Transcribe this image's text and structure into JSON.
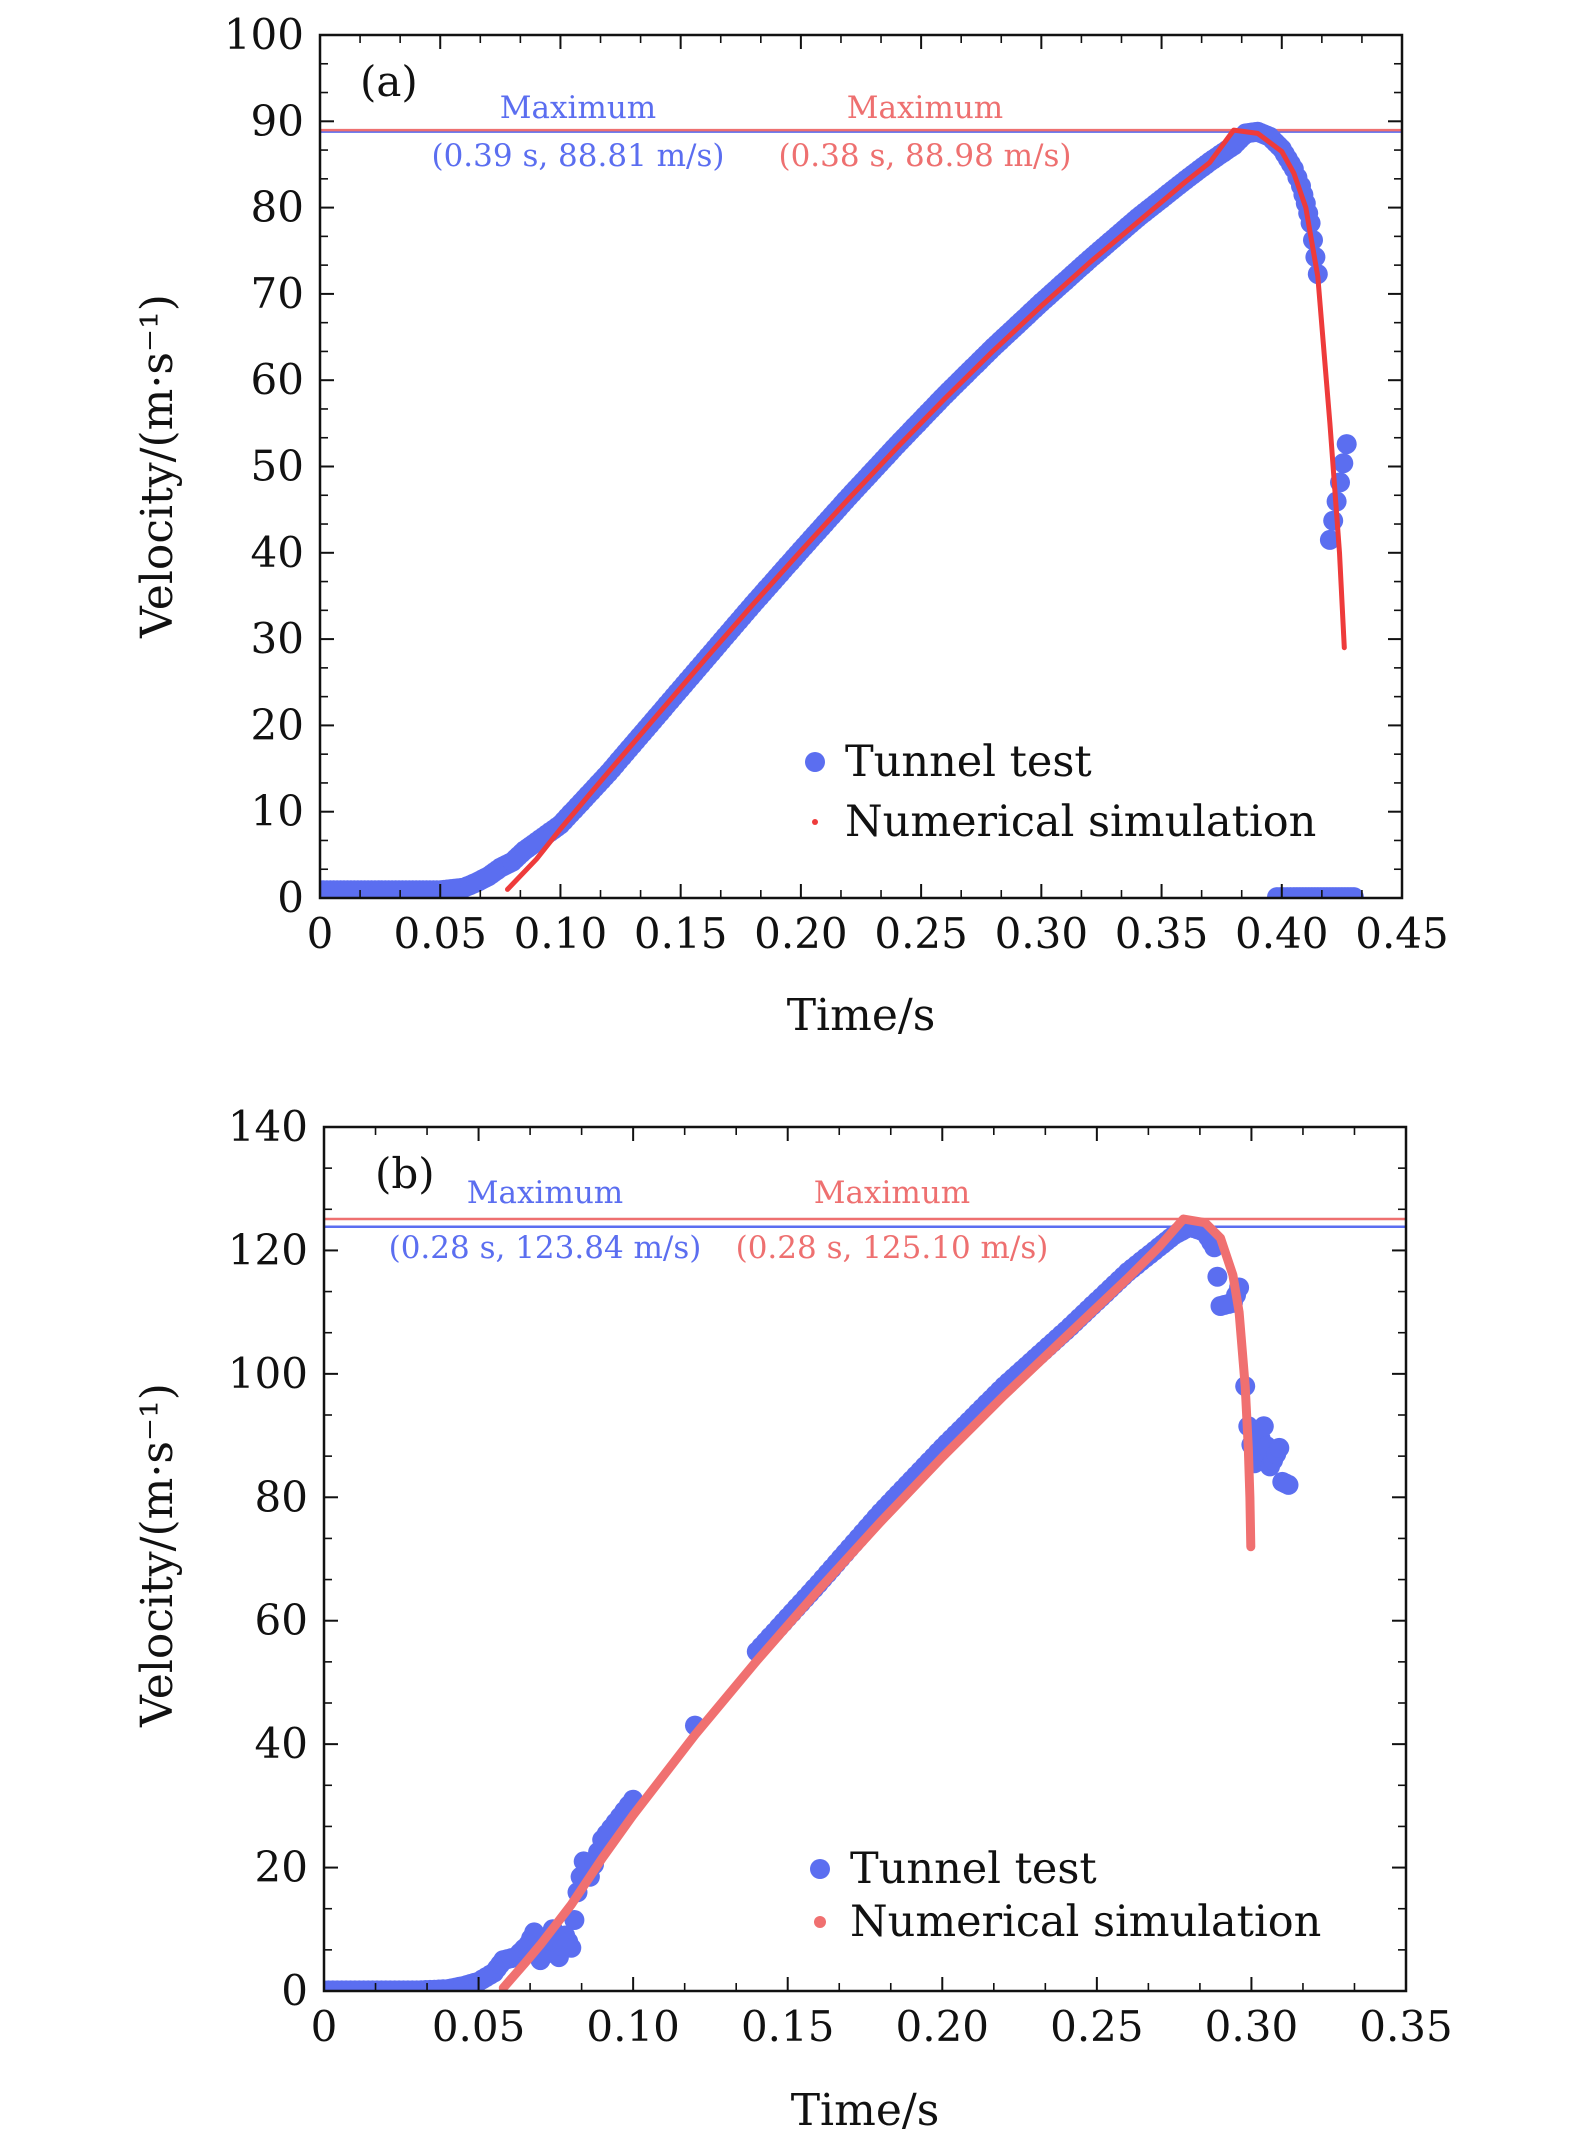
{
  "chart_data": [
    {
      "type": "scatter",
      "panel_label": "(a)",
      "xlabel": "Time/s",
      "ylabel": "Velocity/(m·s⁻¹)",
      "xlim": [
        0,
        0.45
      ],
      "ylim": [
        0,
        100
      ],
      "x_ticks": [
        0,
        0.05,
        0.1,
        0.15,
        0.2,
        0.25,
        0.3,
        0.35,
        0.4,
        0.45
      ],
      "x_tick_labels": [
        "0",
        "0.05",
        "0.10",
        "0.15",
        "0.20",
        "0.25",
        "0.30",
        "0.35",
        "0.40",
        "0.45"
      ],
      "y_ticks": [
        0,
        10,
        20,
        30,
        40,
        50,
        60,
        70,
        80,
        90,
        100
      ],
      "y_tick_labels": [
        "0",
        "10",
        "20",
        "30",
        "40",
        "50",
        "60",
        "70",
        "80",
        "90",
        "100"
      ],
      "legend_position": "bottom-right",
      "series": [
        {
          "name": "Tunnel test",
          "kind": "scatter",
          "color": "#5b6ef0",
          "points": [
            [
              0.0,
              0.9
            ],
            [
              0.01,
              0.9
            ],
            [
              0.02,
              0.9
            ],
            [
              0.03,
              0.9
            ],
            [
              0.04,
              0.9
            ],
            [
              0.05,
              0.9
            ],
            [
              0.06,
              1.2
            ],
            [
              0.065,
              1.8
            ],
            [
              0.07,
              2.5
            ],
            [
              0.075,
              3.5
            ],
            [
              0.08,
              4.2
            ],
            [
              0.085,
              5.5
            ],
            [
              0.09,
              6.5
            ],
            [
              0.1,
              8.5
            ],
            [
              0.12,
              14.5
            ],
            [
              0.14,
              21.0
            ],
            [
              0.16,
              27.5
            ],
            [
              0.18,
              34.0
            ],
            [
              0.2,
              40.3
            ],
            [
              0.22,
              46.5
            ],
            [
              0.24,
              52.5
            ],
            [
              0.26,
              58.3
            ],
            [
              0.28,
              63.8
            ],
            [
              0.3,
              69.0
            ],
            [
              0.32,
              74.0
            ],
            [
              0.34,
              78.8
            ],
            [
              0.36,
              83.2
            ],
            [
              0.37,
              85.3
            ],
            [
              0.38,
              87.2
            ],
            [
              0.385,
              88.6
            ],
            [
              0.39,
              88.8
            ],
            [
              0.395,
              88.2
            ],
            [
              0.4,
              86.8
            ],
            [
              0.405,
              84.5
            ],
            [
              0.408,
              82.5
            ],
            [
              0.41,
              80.5
            ],
            [
              0.412,
              78.2
            ],
            [
              0.415,
              72.3
            ],
            [
              0.42,
              41.5
            ],
            [
              0.427,
              52.6
            ],
            [
              0.398,
              0.1
            ],
            [
              0.405,
              0.1
            ],
            [
              0.41,
              0.1
            ],
            [
              0.415,
              0.1
            ],
            [
              0.42,
              0.1
            ],
            [
              0.425,
              0.1
            ],
            [
              0.43,
              0.1
            ]
          ]
        },
        {
          "name": "Numerical simulation",
          "kind": "line",
          "color": "#ee3b3b",
          "points": [
            [
              0.078,
              1.0
            ],
            [
              0.09,
              4.5
            ],
            [
              0.1,
              8.0
            ],
            [
              0.12,
              14.6
            ],
            [
              0.14,
              21.1
            ],
            [
              0.16,
              27.6
            ],
            [
              0.18,
              34.0
            ],
            [
              0.2,
              40.2
            ],
            [
              0.22,
              46.3
            ],
            [
              0.24,
              52.2
            ],
            [
              0.26,
              57.9
            ],
            [
              0.28,
              63.4
            ],
            [
              0.3,
              68.6
            ],
            [
              0.32,
              73.6
            ],
            [
              0.34,
              78.3
            ],
            [
              0.36,
              83.0
            ],
            [
              0.37,
              85.2
            ],
            [
              0.38,
              88.98
            ],
            [
              0.39,
              88.6
            ],
            [
              0.4,
              86.5
            ],
            [
              0.405,
              84.0
            ],
            [
              0.41,
              80.0
            ],
            [
              0.415,
              72.0
            ],
            [
              0.42,
              55.0
            ],
            [
              0.424,
              40.0
            ],
            [
              0.426,
              29.0
            ]
          ]
        }
      ],
      "reference_lines": [
        {
          "y": 88.81,
          "color": "#5b6ef0"
        },
        {
          "y": 88.98,
          "color": "#ee7070"
        }
      ],
      "annotations": [
        {
          "title": "Maximum",
          "text": "(0.39 s, 88.81 m/s)",
          "color": "#5b6ef0"
        },
        {
          "title": "Maximum",
          "text": "(0.38 s, 88.98 m/s)",
          "color": "#ee7070"
        }
      ]
    },
    {
      "type": "scatter",
      "panel_label": "(b)",
      "xlabel": "Time/s",
      "ylabel": "Velocity/(m·s⁻¹)",
      "xlim": [
        0,
        0.35
      ],
      "ylim": [
        0,
        140
      ],
      "x_ticks": [
        0,
        0.05,
        0.1,
        0.15,
        0.2,
        0.25,
        0.3,
        0.35
      ],
      "x_tick_labels": [
        "0",
        "0.05",
        "0.10",
        "0.15",
        "0.20",
        "0.25",
        "0.30",
        "0.35"
      ],
      "y_ticks": [
        0,
        20,
        40,
        60,
        80,
        100,
        120,
        140
      ],
      "y_tick_labels": [
        "0",
        "20",
        "40",
        "60",
        "80",
        "100",
        "120",
        "140"
      ],
      "legend_position": "bottom-right",
      "series": [
        {
          "name": "Tunnel test",
          "kind": "scatter",
          "color": "#5b6ef0",
          "points": [
            [
              0.0,
              0.1
            ],
            [
              0.01,
              0.1
            ],
            [
              0.02,
              0.1
            ],
            [
              0.03,
              0.1
            ],
            [
              0.04,
              0.3
            ],
            [
              0.045,
              0.8
            ],
            [
              0.05,
              1.5
            ],
            [
              0.055,
              3.0
            ],
            [
              0.058,
              5.0
            ],
            [
              0.062,
              5.5
            ],
            [
              0.066,
              7.5
            ],
            [
              0.068,
              9.5
            ],
            [
              0.07,
              5.0
            ],
            [
              0.072,
              6.5
            ],
            [
              0.074,
              10.0
            ],
            [
              0.076,
              5.5
            ],
            [
              0.078,
              9.0
            ],
            [
              0.08,
              7.0
            ],
            [
              0.082,
              16.0
            ],
            [
              0.084,
              21.0
            ],
            [
              0.086,
              18.5
            ],
            [
              0.09,
              24.5
            ],
            [
              0.1,
              31.0
            ],
            [
              0.12,
              43.0
            ],
            [
              0.14,
              55.0
            ],
            [
              0.16,
              66.0
            ],
            [
              0.18,
              77.5
            ],
            [
              0.2,
              88.0
            ],
            [
              0.22,
              98.0
            ],
            [
              0.24,
              107.0
            ],
            [
              0.26,
              116.5
            ],
            [
              0.27,
              120.5
            ],
            [
              0.275,
              122.5
            ],
            [
              0.28,
              123.84
            ],
            [
              0.285,
              123.0
            ],
            [
              0.288,
              120.5
            ],
            [
              0.29,
              111.0
            ],
            [
              0.294,
              111.5
            ],
            [
              0.296,
              114.0
            ],
            [
              0.298,
              98.0
            ],
            [
              0.299,
              91.5
            ],
            [
              0.301,
              85.5
            ],
            [
              0.304,
              91.5
            ],
            [
              0.306,
              85.0
            ],
            [
              0.309,
              88.0
            ],
            [
              0.31,
              82.5
            ],
            [
              0.312,
              82.0
            ]
          ]
        },
        {
          "name": "Numerical simulation",
          "kind": "line",
          "color": "#f07070",
          "points": [
            [
              0.058,
              0.5
            ],
            [
              0.065,
              4.5
            ],
            [
              0.07,
              7.5
            ],
            [
              0.08,
              14.0
            ],
            [
              0.09,
              21.5
            ],
            [
              0.1,
              28.5
            ],
            [
              0.12,
              41.5
            ],
            [
              0.14,
              53.5
            ],
            [
              0.16,
              65.0
            ],
            [
              0.18,
              76.0
            ],
            [
              0.2,
              86.5
            ],
            [
              0.22,
              96.5
            ],
            [
              0.24,
              106.0
            ],
            [
              0.26,
              115.5
            ],
            [
              0.27,
              120.5
            ],
            [
              0.278,
              125.1
            ],
            [
              0.285,
              124.5
            ],
            [
              0.29,
              122.0
            ],
            [
              0.294,
              116.0
            ],
            [
              0.296,
              110.0
            ],
            [
              0.298,
              98.0
            ],
            [
              0.299,
              88.0
            ],
            [
              0.2995,
              80.0
            ],
            [
              0.2998,
              72.0
            ]
          ]
        }
      ],
      "reference_lines": [
        {
          "y": 123.84,
          "color": "#5b6ef0"
        },
        {
          "y": 125.1,
          "color": "#ee7070"
        }
      ],
      "annotations": [
        {
          "title": "Maximum",
          "text": "(0.28 s, 123.84 m/s)",
          "color": "#5b6ef0"
        },
        {
          "title": "Maximum",
          "text": "(0.28 s, 125.10 m/s)",
          "color": "#ee7070"
        }
      ]
    }
  ]
}
